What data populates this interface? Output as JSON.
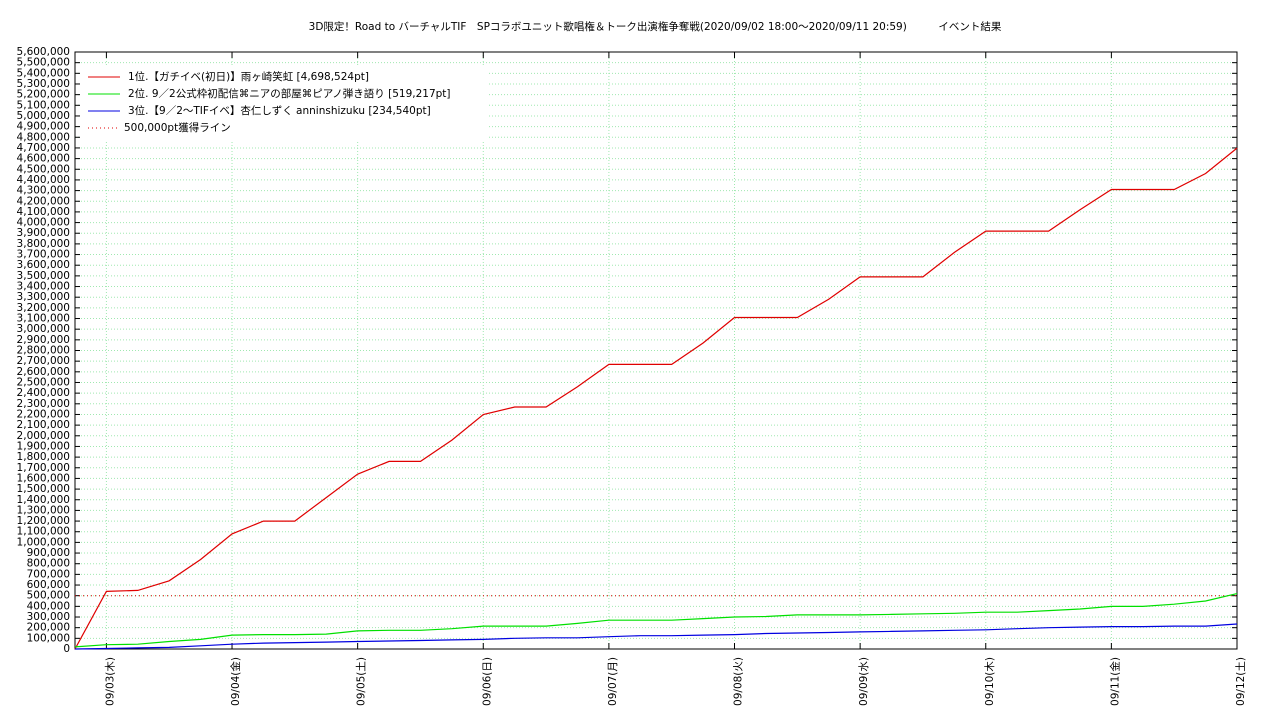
{
  "chart_data": {
    "type": "line",
    "title": "3D限定！Road to バーチャルTIF　SPコラボユニット歌唱権＆トーク出演権争奪戦(2020/09/02 18:00〜2020/09/11 20:59)　　　イベント結果",
    "x": [
      "2020/09/02 18:00",
      "2020/09/03 00:00",
      "2020/09/03 06:00",
      "2020/09/03 12:00",
      "2020/09/03 18:00",
      "2020/09/04 00:00",
      "2020/09/04 06:00",
      "2020/09/04 12:00",
      "2020/09/04 18:00",
      "2020/09/05 00:00",
      "2020/09/05 06:00",
      "2020/09/05 12:00",
      "2020/09/05 18:00",
      "2020/09/06 00:00",
      "2020/09/06 06:00",
      "2020/09/06 12:00",
      "2020/09/06 18:00",
      "2020/09/07 00:00",
      "2020/09/07 06:00",
      "2020/09/07 12:00",
      "2020/09/07 18:00",
      "2020/09/08 00:00",
      "2020/09/08 06:00",
      "2020/09/08 12:00",
      "2020/09/08 18:00",
      "2020/09/09 00:00",
      "2020/09/09 06:00",
      "2020/09/09 12:00",
      "2020/09/09 18:00",
      "2020/09/10 00:00",
      "2020/09/10 06:00",
      "2020/09/10 12:00",
      "2020/09/10 18:00",
      "2020/09/11 00:00",
      "2020/09/11 06:00",
      "2020/09/11 12:00",
      "2020/09/11 18:00",
      "2020/09/12 00:00"
    ],
    "series": [
      {
        "name": "1位.【ガチイベ(初日)】雨ヶ崎笑虹 [4,698,524pt]",
        "color": "#e00000",
        "values": [
          0,
          540000,
          550000,
          640000,
          840000,
          1080000,
          1200000,
          1200000,
          1420000,
          1640000,
          1760000,
          1760000,
          1960000,
          2200000,
          2270000,
          2270000,
          2460000,
          2670000,
          2670000,
          2670000,
          2870000,
          3110000,
          3110000,
          3110000,
          3280000,
          3490000,
          3490000,
          3490000,
          3720000,
          3920000,
          3920000,
          3920000,
          4120000,
          4310000,
          4310000,
          4310000,
          4460000,
          4698524
        ]
      },
      {
        "name": "2位. 9／2公式枠初配信⌘ニアの部屋⌘ピアノ弾き語り [519,217pt]",
        "color": "#00e000",
        "values": [
          20000,
          40000,
          45000,
          70000,
          90000,
          130000,
          135000,
          135000,
          140000,
          170000,
          175000,
          175000,
          190000,
          215000,
          215000,
          215000,
          240000,
          270000,
          270000,
          270000,
          285000,
          300000,
          305000,
          320000,
          320000,
          320000,
          325000,
          330000,
          335000,
          345000,
          345000,
          360000,
          375000,
          400000,
          400000,
          420000,
          450000,
          519217
        ]
      },
      {
        "name": "3位.【9／2〜TIFイベ】杏仁しずく anninshizuku [234,540pt]",
        "color": "#0000e0",
        "values": [
          0,
          5000,
          10000,
          15000,
          30000,
          45000,
          55000,
          60000,
          65000,
          70000,
          75000,
          80000,
          85000,
          90000,
          100000,
          105000,
          105000,
          115000,
          125000,
          125000,
          130000,
          135000,
          145000,
          150000,
          155000,
          160000,
          165000,
          170000,
          175000,
          180000,
          190000,
          200000,
          205000,
          210000,
          210000,
          215000,
          215000,
          234540
        ]
      }
    ],
    "reference_line": {
      "name": "500,000pt獲得ライン",
      "value": 500000,
      "color": "#e00000"
    },
    "xlim": [
      "2020/09/02 18:00",
      "2020/09/12 00:00"
    ],
    "xticks": [
      {
        "value": "2020/09/03 00:00",
        "label": "09/03(木)"
      },
      {
        "value": "2020/09/04 00:00",
        "label": "09/04(金)"
      },
      {
        "value": "2020/09/05 00:00",
        "label": "09/05(土)"
      },
      {
        "value": "2020/09/06 00:00",
        "label": "09/06(日)"
      },
      {
        "value": "2020/09/07 00:00",
        "label": "09/07(月)"
      },
      {
        "value": "2020/09/08 00:00",
        "label": "09/08(火)"
      },
      {
        "value": "2020/09/09 00:00",
        "label": "09/09(水)"
      },
      {
        "value": "2020/09/10 00:00",
        "label": "09/10(木)"
      },
      {
        "value": "2020/09/11 00:00",
        "label": "09/11(金)"
      },
      {
        "value": "2020/09/12 00:00",
        "label": "09/12(土)"
      }
    ],
    "ylim": [
      0,
      5600000
    ],
    "yticks": [
      0,
      {
        "value": 100000,
        "label": "100,000"
      },
      {
        "value": 200000,
        "label": "200,000"
      },
      {
        "value": 300000,
        "label": "300,000"
      },
      {
        "value": 400000,
        "label": "400,000"
      },
      {
        "value": 500000,
        "label": "500,000"
      },
      {
        "value": 600000,
        "label": "600,000"
      },
      {
        "value": 700000,
        "label": "700,000"
      },
      {
        "value": 800000,
        "label": "800,000"
      },
      {
        "value": 900000,
        "label": "900,000"
      },
      {
        "value": 1000000,
        "label": "1,000,000"
      },
      {
        "value": 1100000,
        "label": "1,100,000"
      },
      {
        "value": 1200000,
        "label": "1,200,000"
      },
      {
        "value": 1300000,
        "label": "1,300,000"
      },
      {
        "value": 1400000,
        "label": "1,400,000"
      },
      {
        "value": 1500000,
        "label": "1,500,000"
      },
      {
        "value": 1600000,
        "label": "1,600,000"
      },
      {
        "value": 1700000,
        "label": "1,700,000"
      },
      {
        "value": 1800000,
        "label": "1,800,000"
      },
      {
        "value": 1900000,
        "label": "1,900,000"
      },
      {
        "value": 2000000,
        "label": "2,000,000"
      },
      {
        "value": 2100000,
        "label": "2,100,000"
      },
      {
        "value": 2200000,
        "label": "2,200,000"
      },
      {
        "value": 2300000,
        "label": "2,300,000"
      },
      {
        "value": 2400000,
        "label": "2,400,000"
      },
      {
        "value": 2500000,
        "label": "2,500,000"
      },
      {
        "value": 2600000,
        "label": "2,600,000"
      },
      {
        "value": 2700000,
        "label": "2,700,000"
      },
      {
        "value": 2800000,
        "label": "2,800,000"
      },
      {
        "value": 2900000,
        "label": "2,900,000"
      },
      {
        "value": 3000000,
        "label": "3,000,000"
      },
      {
        "value": 3100000,
        "label": "3,100,000"
      },
      {
        "value": 3200000,
        "label": "3,200,000"
      },
      {
        "value": 3300000,
        "label": "3,300,000"
      },
      {
        "value": 3400000,
        "label": "3,400,000"
      },
      {
        "value": 3500000,
        "label": "3,500,000"
      },
      {
        "value": 3600000,
        "label": "3,600,000"
      },
      {
        "value": 3700000,
        "label": "3,700,000"
      },
      {
        "value": 3800000,
        "label": "3,800,000"
      },
      {
        "value": 3900000,
        "label": "3,900,000"
      },
      {
        "value": 4000000,
        "label": "4,000,000"
      },
      {
        "value": 4100000,
        "label": "4,100,000"
      },
      {
        "value": 4200000,
        "label": "4,200,000"
      },
      {
        "value": 4300000,
        "label": "4,300,000"
      },
      {
        "value": 4400000,
        "label": "4,400,000"
      },
      {
        "value": 4500000,
        "label": "4,500,000"
      },
      {
        "value": 4600000,
        "label": "4,600,000"
      },
      {
        "value": 4700000,
        "label": "4,700,000"
      },
      {
        "value": 4800000,
        "label": "4,800,000"
      },
      {
        "value": 4900000,
        "label": "4,900,000"
      },
      {
        "value": 5000000,
        "label": "5,000,000"
      },
      {
        "value": 5100000,
        "label": "5,100,000"
      },
      {
        "value": 5200000,
        "label": "5,200,000"
      },
      {
        "value": 5300000,
        "label": "5,300,000"
      },
      {
        "value": 5400000,
        "label": "5,400,000"
      },
      {
        "value": 5500000,
        "label": "5,500,000"
      },
      {
        "value": 5600000,
        "label": "5,600,000"
      }
    ],
    "grid": true,
    "grid_color": "#a0e8b0",
    "legend": "top-left"
  }
}
